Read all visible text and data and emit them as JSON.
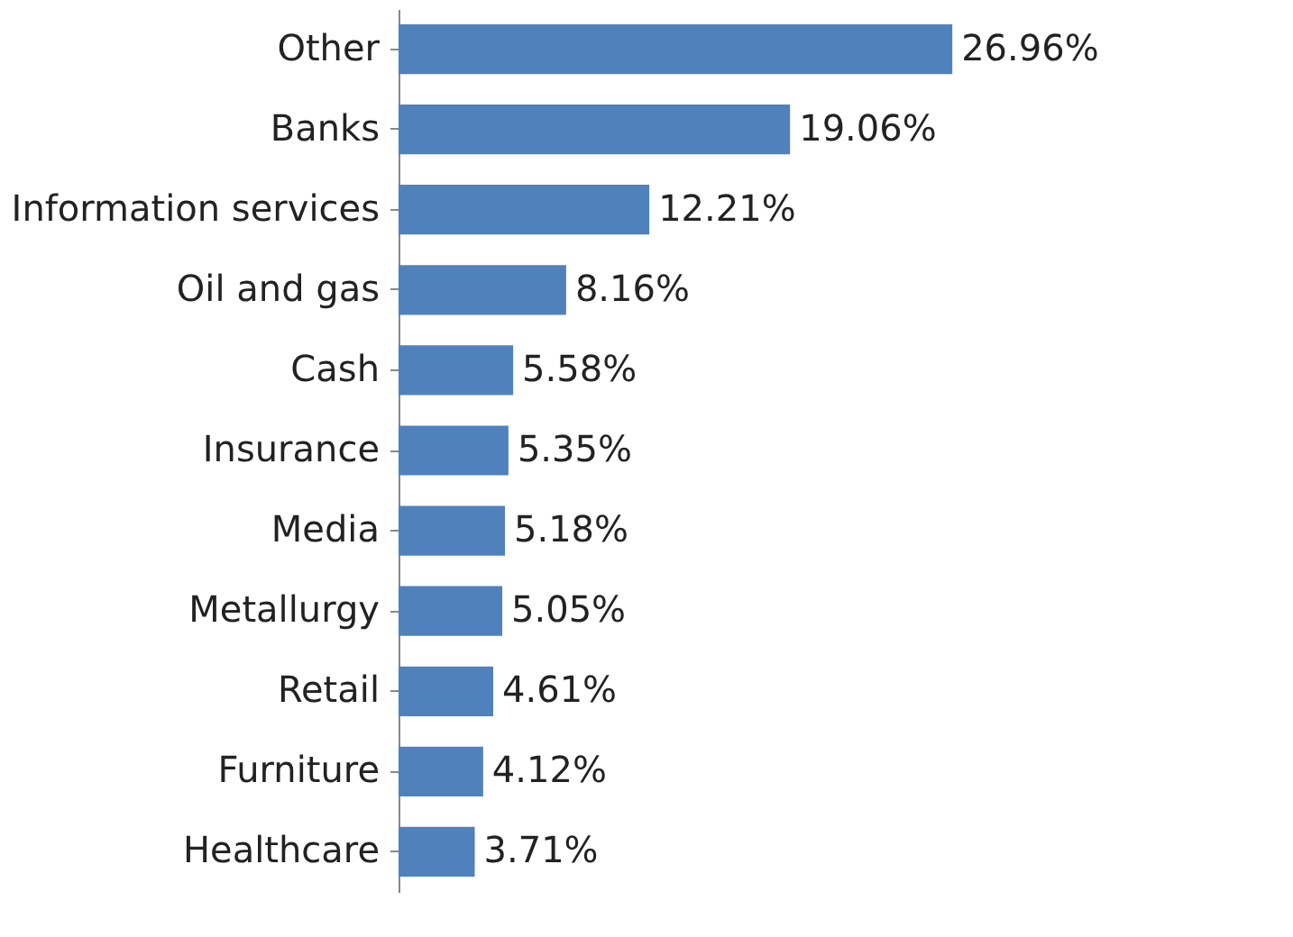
{
  "chart_data": {
    "type": "bar",
    "orientation": "horizontal",
    "categories": [
      "Other",
      "Banks",
      "Information services",
      "Oil and gas",
      "Cash",
      "Insurance",
      "Media",
      "Metallurgy",
      "Retail",
      "Furniture",
      "Healthcare"
    ],
    "values": [
      26.96,
      19.06,
      12.21,
      8.16,
      5.58,
      5.35,
      5.18,
      5.05,
      4.61,
      4.12,
      3.71
    ],
    "value_labels": [
      "26.96%",
      "19.06%",
      "12.21%",
      "8.16%",
      "5.58%",
      "5.35%",
      "5.18%",
      "5.05%",
      "4.61%",
      "4.12%",
      "3.71%"
    ],
    "color": "#4f81bd"
  }
}
